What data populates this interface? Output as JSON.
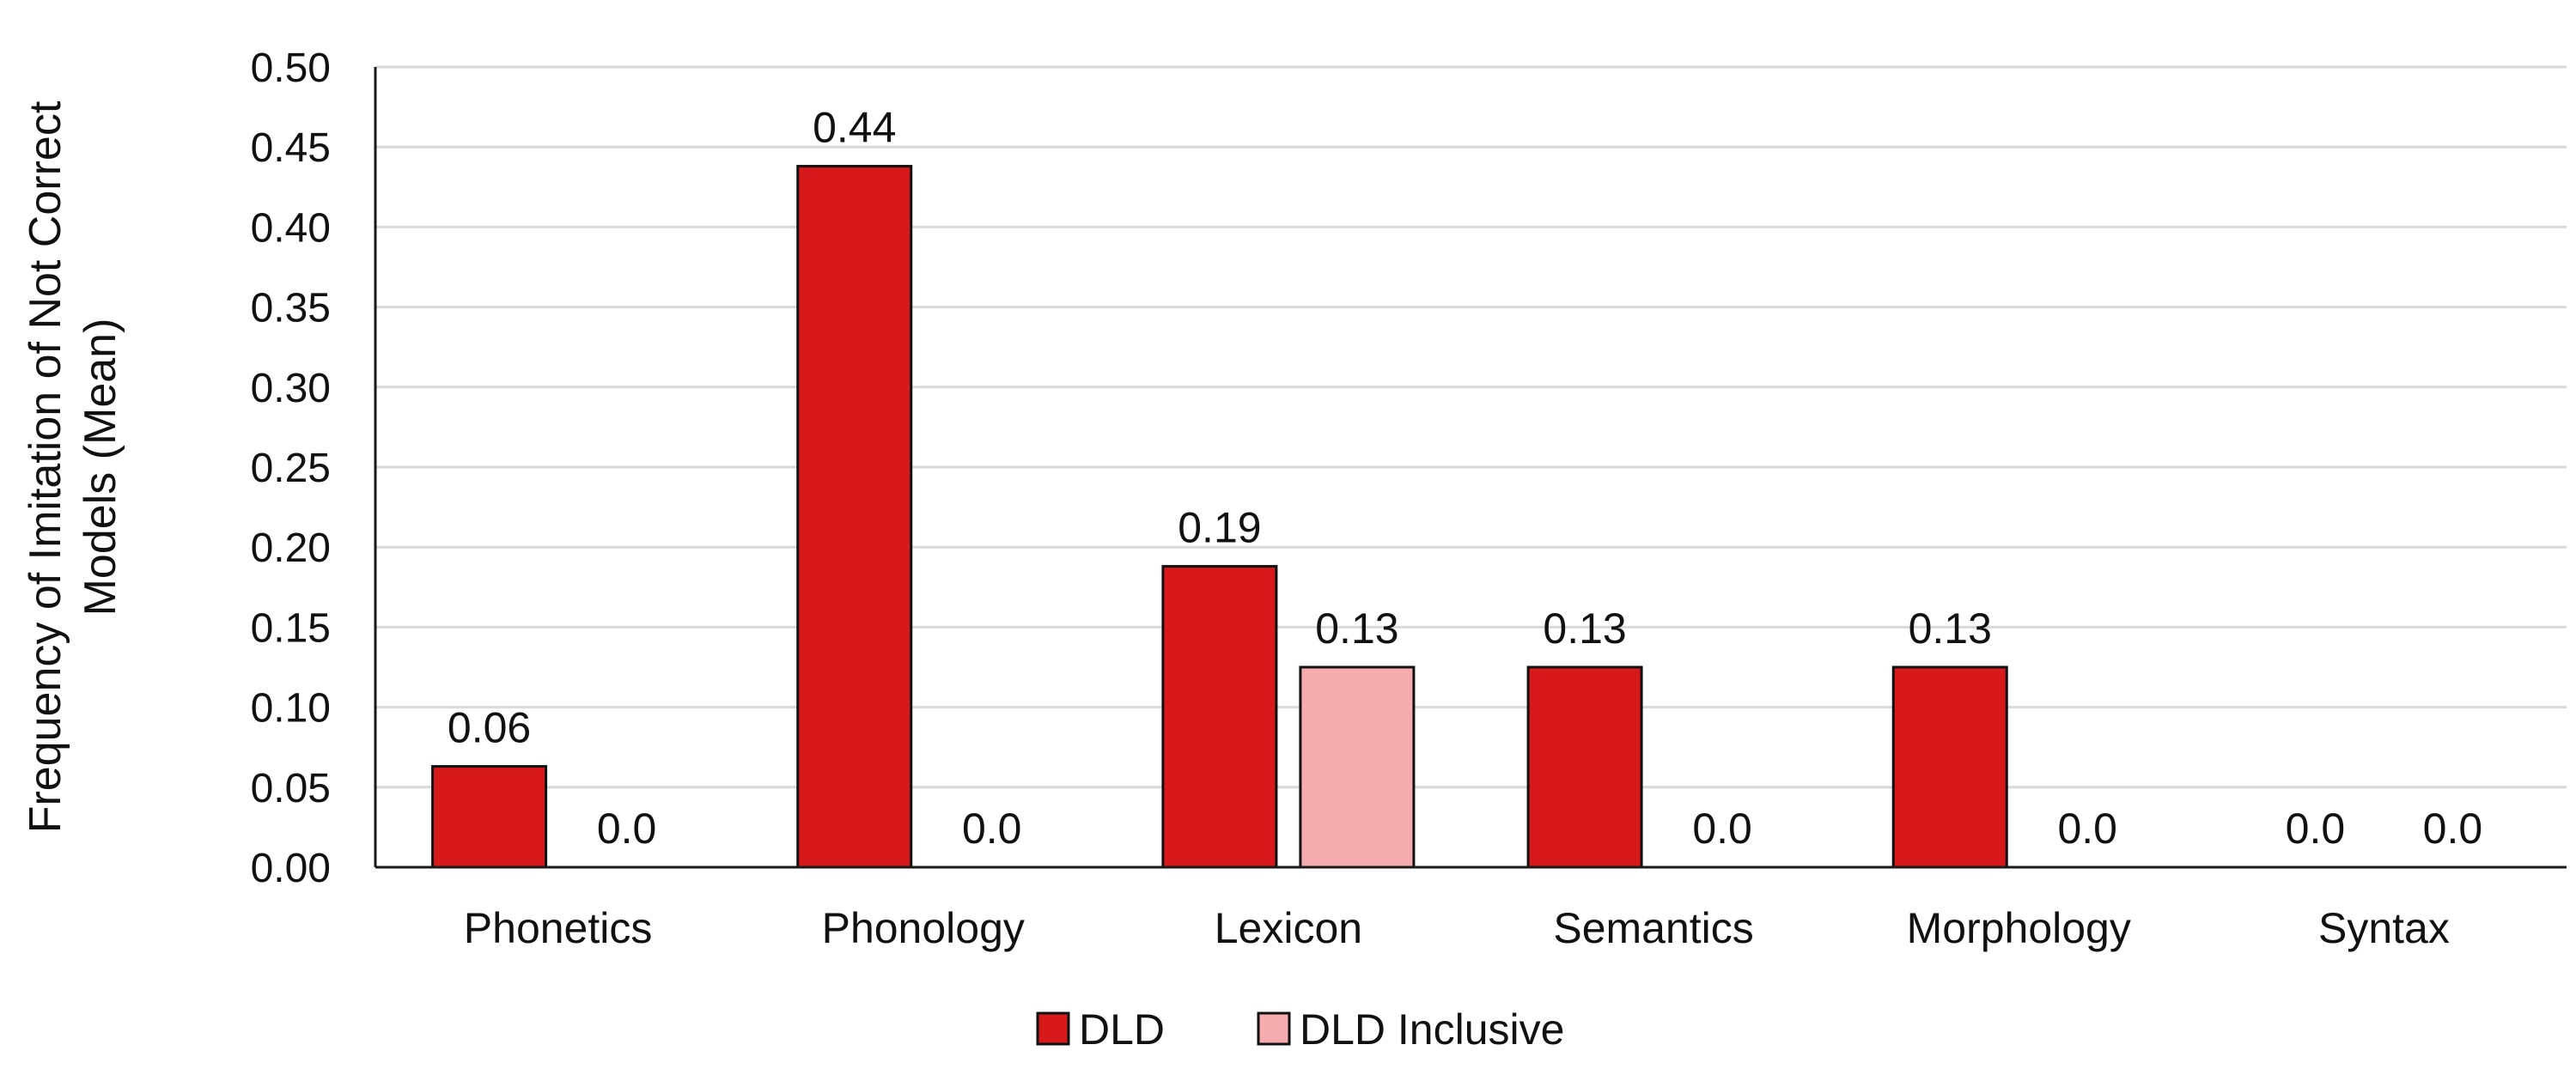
{
  "chart_data": {
    "type": "bar",
    "title": "",
    "xlabel": "",
    "ylabel": "Frequency of Imitation of Not Correct Models (Mean)",
    "ylabel_lines": [
      "Frequency of Imitation of Not Correct",
      "Models (Mean)"
    ],
    "ylim": [
      0,
      0.5
    ],
    "yticks": [
      "0.00",
      "0.05",
      "0.10",
      "0.15",
      "0.20",
      "0.25",
      "0.30",
      "0.35",
      "0.40",
      "0.45",
      "0.50"
    ],
    "grid": true,
    "legend_position": "bottom",
    "categories": [
      "Phonetics",
      "Phonology",
      "Lexicon",
      "Semantics",
      "Morphology",
      "Syntax"
    ],
    "series": [
      {
        "name": "DLD",
        "color": "#d7191c",
        "values": [
          0.063,
          0.438,
          0.188,
          0.125,
          0.125,
          0.0
        ],
        "labels": [
          "0.06",
          "0.44",
          "0.19",
          "0.13",
          "0.13",
          "0.0"
        ]
      },
      {
        "name": "DLD Inclusive",
        "color": "#f4acaf",
        "values": [
          0.0,
          0.0,
          0.125,
          0.0,
          0.0,
          0.0
        ],
        "labels": [
          "0.0",
          "0.0",
          "0.13",
          "0.0",
          "0.0",
          "0.0"
        ]
      }
    ]
  }
}
